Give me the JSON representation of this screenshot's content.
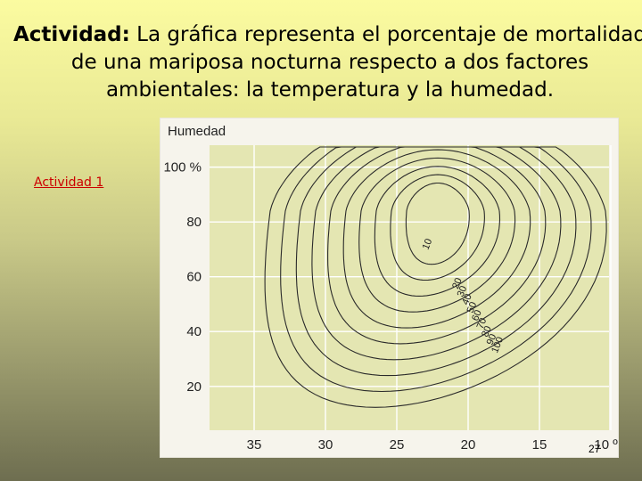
{
  "slide": {
    "title_bold": "Actividad:",
    "title_rest": " La gráfica representa el porcentaje de mortalidad",
    "title_line2": "de una mariposa nocturna respecto a dos factores",
    "title_line3": "ambientales: la temperatura y la humedad.",
    "link": "Actividad 1",
    "page_number": "27"
  },
  "chart_data": {
    "type": "contour",
    "ylabel": "Humedad",
    "y_ticks": [
      "100 %",
      "80",
      "60",
      "40",
      "20"
    ],
    "y_tick_values": [
      100,
      80,
      60,
      40,
      20
    ],
    "x_ticks": [
      "35",
      "30",
      "25",
      "20",
      "15",
      "10 ºC"
    ],
    "x_tick_values": [
      35,
      30,
      25,
      20,
      15,
      10
    ],
    "x_reversed": true,
    "contour_labels": [
      "10",
      "20",
      "30",
      "40",
      "50",
      "60",
      "70",
      "80",
      "90",
      "100"
    ],
    "contour_levels": [
      10,
      20,
      30,
      40,
      50,
      60,
      70,
      80,
      90,
      100
    ],
    "minimum_center": {
      "temperature": 21,
      "humidity": 84
    },
    "background_color": "#e4e6b2"
  }
}
